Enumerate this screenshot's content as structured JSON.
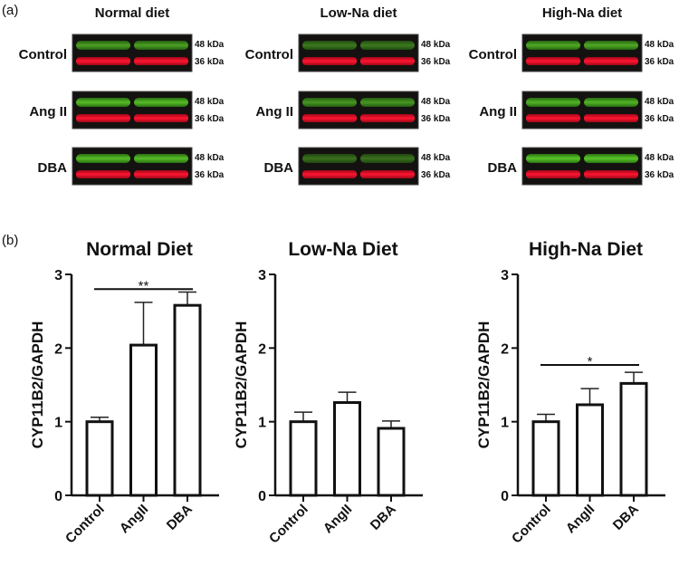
{
  "panel_labels": {
    "a": "(a)",
    "b": "(b)"
  },
  "blots": {
    "columns": [
      {
        "title": "Normal diet"
      },
      {
        "title": "Low-Na diet"
      },
      {
        "title": "High-Na diet"
      }
    ],
    "rows": [
      "Control",
      "Ang II",
      "DBA"
    ],
    "markers": [
      "48 kDa",
      "36 kDa"
    ],
    "colors": {
      "upper_band": "#3cc21e",
      "lower_band": "#f0102a",
      "background": "#141210"
    }
  },
  "chart_data": [
    {
      "type": "bar",
      "title": "Normal Diet",
      "ylabel": "CYP11B2/GAPDH",
      "categories": [
        "Control",
        "AngII",
        "DBA"
      ],
      "values": [
        1.0,
        2.04,
        2.58
      ],
      "errors": [
        0.06,
        0.58,
        0.18
      ],
      "ylim": [
        0,
        3
      ],
      "yticks": [
        "0",
        "1",
        "2",
        "3"
      ],
      "significance": {
        "from": 0,
        "to": 2,
        "level": 2.8,
        "label": "**"
      }
    },
    {
      "type": "bar",
      "title": "Low-Na Diet",
      "ylabel": "CYP11B2/GAPDH",
      "categories": [
        "Control",
        "AngII",
        "DBA"
      ],
      "values": [
        1.0,
        1.26,
        0.91
      ],
      "errors": [
        0.13,
        0.14,
        0.1
      ],
      "ylim": [
        0,
        3
      ],
      "yticks": [
        "0",
        "1",
        "2",
        "3"
      ]
    },
    {
      "type": "bar",
      "title": "High-Na Diet",
      "ylabel": "CYP11B2/GAPDH",
      "categories": [
        "Control",
        "AngII",
        "DBA"
      ],
      "values": [
        1.0,
        1.23,
        1.52
      ],
      "errors": [
        0.1,
        0.22,
        0.15
      ],
      "ylim": [
        0,
        3
      ],
      "yticks": [
        "0",
        "1",
        "2",
        "3"
      ],
      "significance": {
        "from": 0,
        "to": 2,
        "level": 1.77,
        "label": "*"
      }
    }
  ]
}
